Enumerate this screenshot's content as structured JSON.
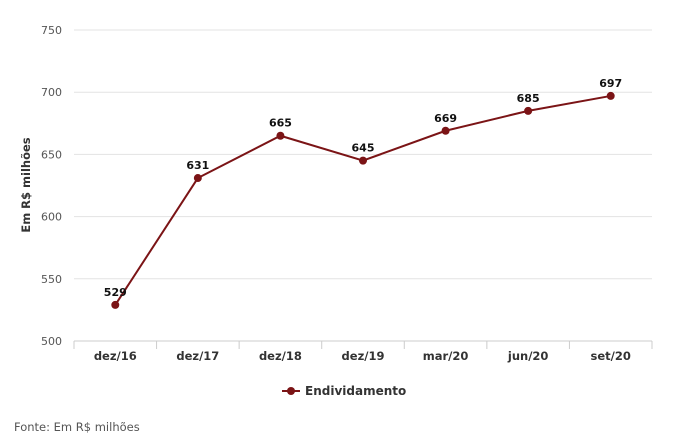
{
  "chart_data": {
    "type": "line",
    "categories": [
      "dez/16",
      "dez/17",
      "dez/18",
      "dez/19",
      "mar/20",
      "jun/20",
      "set/20"
    ],
    "series": [
      {
        "name": "Endividamento",
        "values": [
          529,
          631,
          665,
          645,
          669,
          685,
          697
        ],
        "color": "#7b1416"
      }
    ],
    "title": "",
    "xlabel": "",
    "ylabel": "Em R$ milhões",
    "ylim": [
      500,
      750
    ],
    "yticks": [
      500,
      550,
      600,
      650,
      700,
      750
    ],
    "grid": true,
    "legend": "bottom-center",
    "data_labels": true
  },
  "footnote": "Fonte: Em R$ milhões"
}
